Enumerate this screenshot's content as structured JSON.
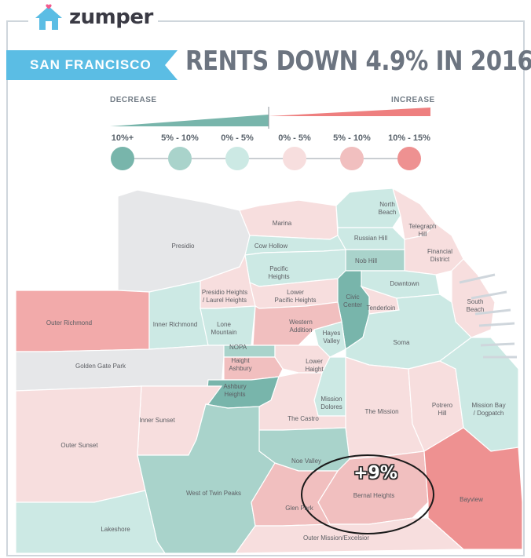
{
  "brand": {
    "name": "zumper",
    "icon": "house-icon",
    "accent": "#5bbde4",
    "heart": "#f25b8e"
  },
  "city_label": "SAN FRANCISCO",
  "headline": "RENTS DOWN 4.9% IN 2016",
  "legend": {
    "decrease_label": "DECREASE",
    "increase_label": "INCREASE",
    "categories": [
      {
        "label": "10%+",
        "color": "#78b5ab"
      },
      {
        "label": "5% - 10%",
        "color": "#a9d3cb"
      },
      {
        "label": "0% - 5%",
        "color": "#cce9e4"
      },
      {
        "label": "0% - 5%",
        "color": "#f7dede"
      },
      {
        "label": "5% - 10%",
        "color": "#f1bfbf"
      },
      {
        "label": "10% - 15%",
        "color": "#ee9191"
      }
    ]
  },
  "map": {
    "background_water": "#ffffff",
    "park_color": "#e6e7e9",
    "callout_text": "+9%",
    "neighborhoods": [
      {
        "name": "North\nBeach",
        "change": "decrease 0-5%"
      },
      {
        "name": "Marina",
        "change": "increase 0-5%"
      },
      {
        "name": "Telegraph\nHill",
        "change": "increase 0-5%"
      },
      {
        "name": "Russian Hill",
        "change": "decrease 0-5%"
      },
      {
        "name": "Presidio",
        "change": "park"
      },
      {
        "name": "Cow Hollow",
        "change": "decrease 0-5%"
      },
      {
        "name": "Financial\nDistrict",
        "change": "increase 0-5%"
      },
      {
        "name": "Nob Hill",
        "change": "decrease 5-10%"
      },
      {
        "name": "Pacific\nHeights",
        "change": "decrease 0-5%"
      },
      {
        "name": "Downtown",
        "change": "decrease 0-5%"
      },
      {
        "name": "Presidio Heights\n/ Laurel Heights",
        "change": "increase 0-5%"
      },
      {
        "name": "Lower\nPacific Heights",
        "change": "increase 0-5%"
      },
      {
        "name": "Civic\nCenter",
        "change": "decrease 5-10%"
      },
      {
        "name": "Tenderloin",
        "change": "increase 0-5%"
      },
      {
        "name": "South\nBeach",
        "change": "increase 0-5%"
      },
      {
        "name": "Outer Richmond",
        "change": "increase 10-15%"
      },
      {
        "name": "Inner Richmond",
        "change": "decrease 0-5%"
      },
      {
        "name": "Lone\nMountain",
        "change": "decrease 0-5%"
      },
      {
        "name": "Western\nAddition",
        "change": "increase 5-10%"
      },
      {
        "name": "Hayes\nValley",
        "change": "decrease 0-5%"
      },
      {
        "name": "NOPA",
        "change": "decrease 5-10%"
      },
      {
        "name": "Soma",
        "change": "decrease 0-5%"
      },
      {
        "name": "Golden Gate Park",
        "change": "park"
      },
      {
        "name": "Haight\nAshbury",
        "change": "increase 5-10%"
      },
      {
        "name": "Lower\nHaight",
        "change": "increase 0-5%"
      },
      {
        "name": "Ashbury\nHeights",
        "change": "decrease 10%+"
      },
      {
        "name": "Mission\nDolores",
        "change": "decrease 0-5%"
      },
      {
        "name": "The Mission",
        "change": "increase 0-5%"
      },
      {
        "name": "Potrero\nHill",
        "change": "increase 0-5%"
      },
      {
        "name": "Mission Bay\n/ Dogpatch",
        "change": "decrease 0-5%"
      },
      {
        "name": "Inner Sunset",
        "change": "increase 0-5%"
      },
      {
        "name": "The Castro",
        "change": "increase 0-5%"
      },
      {
        "name": "Outer Sunset",
        "change": "increase 0-5%"
      },
      {
        "name": "Noe Valley",
        "change": "decrease 5-10%"
      },
      {
        "name": "West of Twin Peaks",
        "change": "decrease 10%+"
      },
      {
        "name": "Bernal Heights",
        "change": "increase 5-10%"
      },
      {
        "name": "Bayview",
        "change": "increase 10-15%"
      },
      {
        "name": "Glen Park",
        "change": "increase 5-10%"
      },
      {
        "name": "Lakeshore",
        "change": "decrease 0-5%"
      },
      {
        "name": "Outer Mission/Excelsior",
        "change": "increase 0-5%"
      }
    ]
  }
}
